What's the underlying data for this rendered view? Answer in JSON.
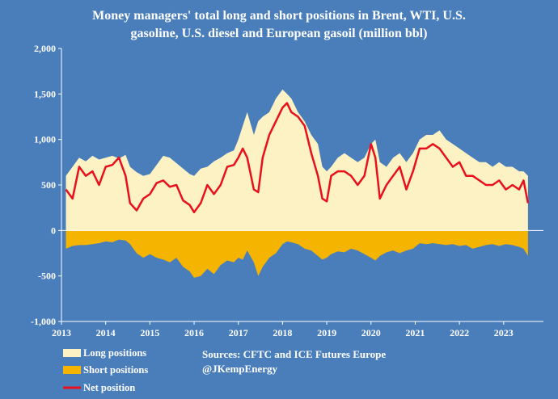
{
  "colors": {
    "background": "#4a7ebb",
    "long_fill": "#fdf2c4",
    "short_fill": "#f5b400",
    "net_line": "#e8101c",
    "text": "#ffffff",
    "axis": "#ffffff"
  },
  "chart_data": {
    "type": "area",
    "title_lines": [
      "Money managers' total long and short positions in Brent, WTI, U.S.",
      "gasoline, U.S. diesel and European gasoil  (million bbl)"
    ],
    "ylim": [
      -1000,
      2000
    ],
    "y_ticks": [
      2000,
      1500,
      1000,
      500,
      0,
      -500,
      -1000
    ],
    "y_tick_labels": [
      "2,000",
      "1,500",
      "1,000",
      "500",
      "0",
      "-500",
      "-1,000"
    ],
    "x_ticks": [
      2013,
      2014,
      2015,
      2016,
      2017,
      2018,
      2019,
      2020,
      2021,
      2022,
      2023
    ],
    "x_tick_labels": [
      "2013",
      "2014",
      "2015",
      "2016",
      "2017",
      "2018",
      "2019",
      "2020",
      "2021",
      "2022",
      "2023"
    ],
    "xlim": [
      2013,
      2023.9
    ],
    "grid": false,
    "legend_position": "bottom-left",
    "series": [
      {
        "name": "Long positions",
        "x": [
          2013.1,
          2013.25,
          2013.4,
          2013.55,
          2013.7,
          2013.85,
          2014.0,
          2014.15,
          2014.3,
          2014.45,
          2014.55,
          2014.7,
          2014.85,
          2015.0,
          2015.15,
          2015.3,
          2015.45,
          2015.6,
          2015.75,
          2015.9,
          2016.0,
          2016.15,
          2016.3,
          2016.45,
          2016.6,
          2016.75,
          2016.9,
          2017.0,
          2017.1,
          2017.2,
          2017.35,
          2017.45,
          2017.55,
          2017.7,
          2017.85,
          2018.0,
          2018.1,
          2018.2,
          2018.35,
          2018.5,
          2018.65,
          2018.8,
          2018.9,
          2019.0,
          2019.1,
          2019.25,
          2019.4,
          2019.55,
          2019.7,
          2019.85,
          2020.0,
          2020.1,
          2020.2,
          2020.35,
          2020.5,
          2020.65,
          2020.8,
          2020.95,
          2021.1,
          2021.25,
          2021.4,
          2021.55,
          2021.7,
          2021.85,
          2022.0,
          2022.15,
          2022.3,
          2022.45,
          2022.6,
          2022.75,
          2022.9,
          2023.05,
          2023.2,
          2023.35,
          2023.45,
          2023.55
        ],
        "values": [
          600,
          700,
          800,
          760,
          820,
          780,
          800,
          820,
          790,
          830,
          700,
          640,
          600,
          620,
          720,
          820,
          800,
          740,
          680,
          620,
          600,
          680,
          700,
          760,
          800,
          850,
          880,
          1000,
          1150,
          1300,
          1050,
          1200,
          1250,
          1300,
          1450,
          1550,
          1500,
          1450,
          1300,
          1200,
          1050,
          950,
          700,
          650,
          700,
          800,
          850,
          800,
          750,
          800,
          950,
          1000,
          750,
          700,
          800,
          850,
          750,
          850,
          1000,
          1050,
          1050,
          1100,
          1000,
          950,
          900,
          850,
          800,
          750,
          750,
          700,
          750,
          700,
          700,
          650,
          650,
          600
        ]
      },
      {
        "name": "Short positions",
        "x": [
          2013.1,
          2013.25,
          2013.4,
          2013.55,
          2013.7,
          2013.85,
          2014.0,
          2014.15,
          2014.3,
          2014.45,
          2014.55,
          2014.7,
          2014.85,
          2015.0,
          2015.15,
          2015.3,
          2015.45,
          2015.6,
          2015.75,
          2015.9,
          2016.0,
          2016.15,
          2016.3,
          2016.45,
          2016.6,
          2016.75,
          2016.9,
          2017.0,
          2017.1,
          2017.2,
          2017.35,
          2017.45,
          2017.55,
          2017.7,
          2017.85,
          2018.0,
          2018.1,
          2018.2,
          2018.35,
          2018.5,
          2018.65,
          2018.8,
          2018.9,
          2019.0,
          2019.1,
          2019.25,
          2019.4,
          2019.55,
          2019.7,
          2019.85,
          2020.0,
          2020.1,
          2020.2,
          2020.35,
          2020.5,
          2020.65,
          2020.8,
          2020.95,
          2021.1,
          2021.25,
          2021.4,
          2021.55,
          2021.7,
          2021.85,
          2022.0,
          2022.15,
          2022.3,
          2022.45,
          2022.6,
          2022.75,
          2022.9,
          2023.05,
          2023.2,
          2023.35,
          2023.45,
          2023.55
        ],
        "values": [
          -200,
          -170,
          -160,
          -160,
          -150,
          -140,
          -120,
          -130,
          -100,
          -110,
          -150,
          -250,
          -300,
          -260,
          -300,
          -320,
          -350,
          -300,
          -400,
          -450,
          -520,
          -500,
          -420,
          -480,
          -380,
          -330,
          -350,
          -300,
          -320,
          -220,
          -350,
          -500,
          -400,
          -300,
          -250,
          -150,
          -120,
          -130,
          -150,
          -200,
          -220,
          -280,
          -320,
          -300,
          -260,
          -230,
          -240,
          -200,
          -220,
          -260,
          -300,
          -330,
          -280,
          -240,
          -220,
          -250,
          -220,
          -200,
          -140,
          -150,
          -140,
          -150,
          -160,
          -150,
          -170,
          -160,
          -200,
          -180,
          -160,
          -150,
          -170,
          -150,
          -160,
          -180,
          -200,
          -280
        ]
      },
      {
        "name": "Net position",
        "x": [
          2013.1,
          2013.25,
          2013.4,
          2013.55,
          2013.7,
          2013.85,
          2014.0,
          2014.15,
          2014.3,
          2014.45,
          2014.55,
          2014.7,
          2014.85,
          2015.0,
          2015.15,
          2015.3,
          2015.45,
          2015.6,
          2015.75,
          2015.9,
          2016.0,
          2016.15,
          2016.3,
          2016.45,
          2016.6,
          2016.75,
          2016.9,
          2017.0,
          2017.1,
          2017.2,
          2017.35,
          2017.45,
          2017.55,
          2017.7,
          2017.85,
          2018.0,
          2018.1,
          2018.2,
          2018.35,
          2018.5,
          2018.65,
          2018.8,
          2018.9,
          2019.0,
          2019.1,
          2019.25,
          2019.4,
          2019.55,
          2019.7,
          2019.85,
          2020.0,
          2020.1,
          2020.2,
          2020.35,
          2020.5,
          2020.65,
          2020.8,
          2020.95,
          2021.1,
          2021.25,
          2021.4,
          2021.55,
          2021.7,
          2021.85,
          2022.0,
          2022.15,
          2022.3,
          2022.45,
          2022.6,
          2022.75,
          2022.9,
          2023.05,
          2023.2,
          2023.35,
          2023.45,
          2023.55
        ],
        "values": [
          450,
          350,
          700,
          600,
          650,
          500,
          700,
          720,
          800,
          600,
          300,
          220,
          350,
          400,
          520,
          550,
          480,
          500,
          330,
          280,
          200,
          300,
          500,
          400,
          500,
          700,
          720,
          800,
          900,
          800,
          450,
          420,
          800,
          1050,
          1200,
          1350,
          1400,
          1300,
          1250,
          1150,
          850,
          600,
          350,
          320,
          600,
          650,
          650,
          600,
          500,
          600,
          950,
          800,
          350,
          500,
          600,
          700,
          450,
          650,
          900,
          900,
          950,
          900,
          800,
          700,
          750,
          600,
          600,
          550,
          500,
          500,
          550,
          450,
          500,
          450,
          550,
          300
        ]
      }
    ],
    "legend": [
      "Long positions",
      "Short positions",
      "Net position"
    ],
    "source_lines": [
      "Sources: CFTC and ICE Futures Europe",
      "@JKempEnergy"
    ]
  }
}
